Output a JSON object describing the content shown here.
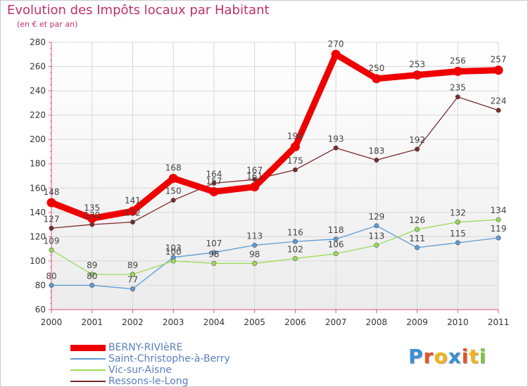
{
  "header": {
    "title": "Evolution des Impôts locaux par Habitant",
    "subtitle": "(en € et par an)"
  },
  "chart_data": {
    "type": "line",
    "title": "Evolution des Impôts locaux par Habitant",
    "subtitle": "(en € et par an)",
    "xlabel": "",
    "ylabel": "",
    "x": [
      "2000",
      "2001",
      "2002",
      "2003",
      "2004",
      "2005",
      "2006",
      "2007",
      "2008",
      "2009",
      "2010",
      "2011"
    ],
    "ylim": [
      60,
      280
    ],
    "yticks": [
      60,
      80,
      100,
      120,
      140,
      160,
      180,
      200,
      220,
      240,
      260,
      280
    ],
    "grid": true,
    "legend_position": "bottom-left",
    "series": [
      {
        "name": "BERNY-RIVIèRE",
        "color": "#ee0000",
        "emphasis": "thick",
        "values": [
          148,
          135,
          141,
          168,
          157,
          161,
          194,
          270,
          250,
          253,
          256,
          257
        ],
        "labels": [
          "148",
          "135",
          "141",
          "168",
          "157",
          "161",
          "194",
          "270",
          "250",
          "253",
          "256",
          "257"
        ]
      },
      {
        "name": "Saint-Christophe-à-Berry",
        "color": "#5b9bd5",
        "emphasis": "thin",
        "values": [
          80,
          80,
          77,
          103,
          107,
          113,
          116,
          118,
          129,
          111,
          115,
          119
        ],
        "labels": [
          "80",
          "80",
          "77",
          "103",
          "107",
          "113",
          "116",
          "118",
          "129",
          "111",
          "115",
          "119"
        ]
      },
      {
        "name": "Vic-sur-Aisne",
        "color": "#99dd55",
        "emphasis": "thin",
        "values": [
          109,
          89,
          89,
          100,
          98,
          98,
          102,
          106,
          113,
          126,
          132,
          134
        ],
        "labels": [
          "109",
          "89",
          "89",
          "100",
          "98",
          "98",
          "102",
          "106",
          "113",
          "126",
          "132",
          "134"
        ]
      },
      {
        "name": "Ressons-le-Long",
        "color": "#7a2a2a",
        "emphasis": "thin",
        "values": [
          127,
          130,
          132,
          150,
          164,
          167,
          175,
          193,
          183,
          192,
          235,
          224
        ],
        "labels": [
          "127",
          "130",
          "132",
          "150",
          "164",
          "167",
          "175",
          "193",
          "183",
          "192",
          "235",
          "224"
        ]
      }
    ]
  },
  "logo": {
    "letters": [
      "P",
      "r",
      "o",
      "x",
      "i",
      "t",
      "i"
    ],
    "colors": [
      "#3a8fd6",
      "#e8512a",
      "#f2b31c",
      "#3a8fd6",
      "#e8512a",
      "#f2b31c",
      "#7cc242"
    ]
  }
}
